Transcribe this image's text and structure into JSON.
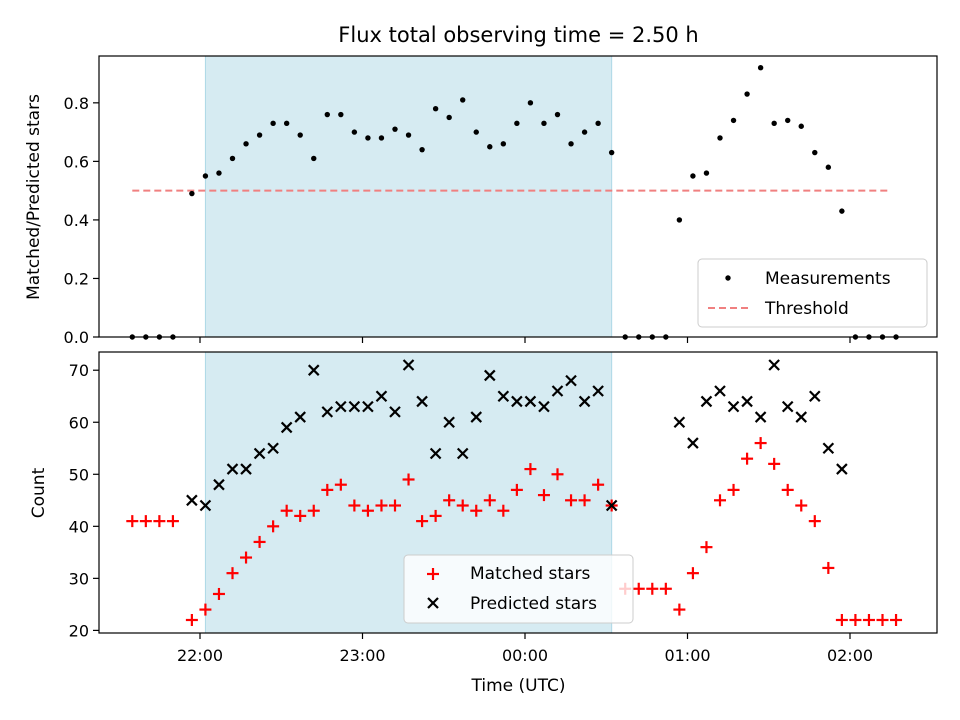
{
  "title": "Flux total observing time = 2.50 h",
  "xlabel": "Time (UTC)",
  "colors": {
    "shade": "#add8e6",
    "threshold": "#f08080",
    "matched": "#ff0000",
    "predicted": "#000000",
    "measurement": "#000000"
  },
  "chart_data": [
    {
      "type": "scatter",
      "ylabel": "Matched/Predicted stars",
      "ylim": [
        0,
        0.96
      ],
      "yticks": [
        "0.0",
        "0.2",
        "0.4",
        "0.6",
        "0.8"
      ],
      "xticks": [
        "22:00",
        "23:00",
        "00:00",
        "01:00",
        "02:00"
      ],
      "shaded_interval": [
        "22:02",
        "00:32"
      ],
      "legend_placement": "lower-right",
      "threshold": {
        "name": "Threshold",
        "value": 0.5,
        "x_range": [
          "21:35",
          "02:15"
        ]
      },
      "series": [
        {
          "name": "Measurements",
          "x": [
            "21:35",
            "21:40",
            "21:45",
            "21:50",
            "21:57",
            "22:02",
            "22:07",
            "22:12",
            "22:17",
            "22:22",
            "22:27",
            "22:32",
            "22:37",
            "22:42",
            "22:47",
            "22:52",
            "22:57",
            "23:02",
            "23:07",
            "23:12",
            "23:17",
            "23:22",
            "23:27",
            "23:32",
            "23:37",
            "23:42",
            "23:47",
            "23:52",
            "23:57",
            "00:02",
            "00:07",
            "00:12",
            "00:17",
            "00:22",
            "00:27",
            "00:32",
            "00:37",
            "00:42",
            "00:47",
            "00:52",
            "00:57",
            "01:02",
            "01:07",
            "01:12",
            "01:17",
            "01:22",
            "01:27",
            "01:32",
            "01:37",
            "01:42",
            "01:47",
            "01:52",
            "01:57",
            "02:02",
            "02:07",
            "02:12",
            "02:17"
          ],
          "y": [
            0,
            0,
            0,
            0,
            0.49,
            0.55,
            0.56,
            0.61,
            0.66,
            0.69,
            0.73,
            0.73,
            0.69,
            0.61,
            0.76,
            0.76,
            0.7,
            0.68,
            0.68,
            0.71,
            0.69,
            0.64,
            0.78,
            0.75,
            0.81,
            0.7,
            0.65,
            0.66,
            0.73,
            0.8,
            0.73,
            0.76,
            0.66,
            0.7,
            0.73,
            0.63,
            0,
            0,
            0,
            0,
            0.4,
            0.55,
            0.56,
            0.68,
            0.74,
            0.83,
            0.92,
            0.73,
            0.74,
            0.72,
            0.63,
            0.58,
            0.43,
            0,
            0,
            0,
            0
          ]
        }
      ]
    },
    {
      "type": "scatter",
      "ylabel": "Count",
      "ylim": [
        19.5,
        73.5
      ],
      "yticks": [
        "20",
        "30",
        "40",
        "50",
        "60",
        "70"
      ],
      "xticks": [
        "22:00",
        "23:00",
        "00:00",
        "01:00",
        "02:00"
      ],
      "shaded_interval": [
        "22:02",
        "00:32"
      ],
      "legend_placement": "lower-center",
      "series": [
        {
          "name": "Matched stars",
          "x": [
            "21:35",
            "21:40",
            "21:45",
            "21:50",
            "21:57",
            "22:02",
            "22:07",
            "22:12",
            "22:17",
            "22:22",
            "22:27",
            "22:32",
            "22:37",
            "22:42",
            "22:47",
            "22:52",
            "22:57",
            "23:02",
            "23:07",
            "23:12",
            "23:17",
            "23:22",
            "23:27",
            "23:32",
            "23:37",
            "23:42",
            "23:47",
            "23:52",
            "23:57",
            "00:02",
            "00:07",
            "00:12",
            "00:17",
            "00:22",
            "00:27",
            "00:32",
            "00:37",
            "00:42",
            "00:47",
            "00:52",
            "00:57",
            "01:02",
            "01:07",
            "01:12",
            "01:17",
            "01:22",
            "01:27",
            "01:32",
            "01:37",
            "01:42",
            "01:47",
            "01:52",
            "01:57",
            "02:02",
            "02:07",
            "02:12",
            "02:17"
          ],
          "y": [
            41,
            41,
            41,
            41,
            22,
            24,
            27,
            31,
            34,
            37,
            40,
            43,
            42,
            43,
            47,
            48,
            44,
            43,
            44,
            44,
            49,
            41,
            42,
            45,
            44,
            43,
            45,
            43,
            47,
            51,
            46,
            50,
            45,
            45,
            48,
            44,
            28,
            28,
            28,
            28,
            24,
            31,
            36,
            45,
            47,
            53,
            56,
            52,
            47,
            44,
            41,
            32,
            22,
            22,
            22,
            22,
            22
          ]
        },
        {
          "name": "Predicted stars",
          "x": [
            "21:57",
            "22:02",
            "22:07",
            "22:12",
            "22:17",
            "22:22",
            "22:27",
            "22:32",
            "22:37",
            "22:42",
            "22:47",
            "22:52",
            "22:57",
            "23:02",
            "23:07",
            "23:12",
            "23:17",
            "23:22",
            "23:27",
            "23:32",
            "23:37",
            "23:42",
            "23:47",
            "23:52",
            "23:57",
            "00:02",
            "00:07",
            "00:12",
            "00:17",
            "00:22",
            "00:27",
            "00:32",
            "00:57",
            "01:02",
            "01:07",
            "01:12",
            "01:17",
            "01:22",
            "01:27",
            "01:32",
            "01:37",
            "01:42",
            "01:47",
            "01:52",
            "01:57"
          ],
          "y": [
            45,
            44,
            48,
            51,
            51,
            54,
            55,
            59,
            61,
            70,
            62,
            63,
            63,
            63,
            65,
            62,
            71,
            64,
            54,
            60,
            54,
            61,
            69,
            65,
            64,
            64,
            63,
            66,
            68,
            64,
            66,
            44,
            60,
            56,
            64,
            66,
            63,
            64,
            61,
            71,
            63,
            61,
            65,
            55,
            51
          ]
        }
      ]
    }
  ]
}
